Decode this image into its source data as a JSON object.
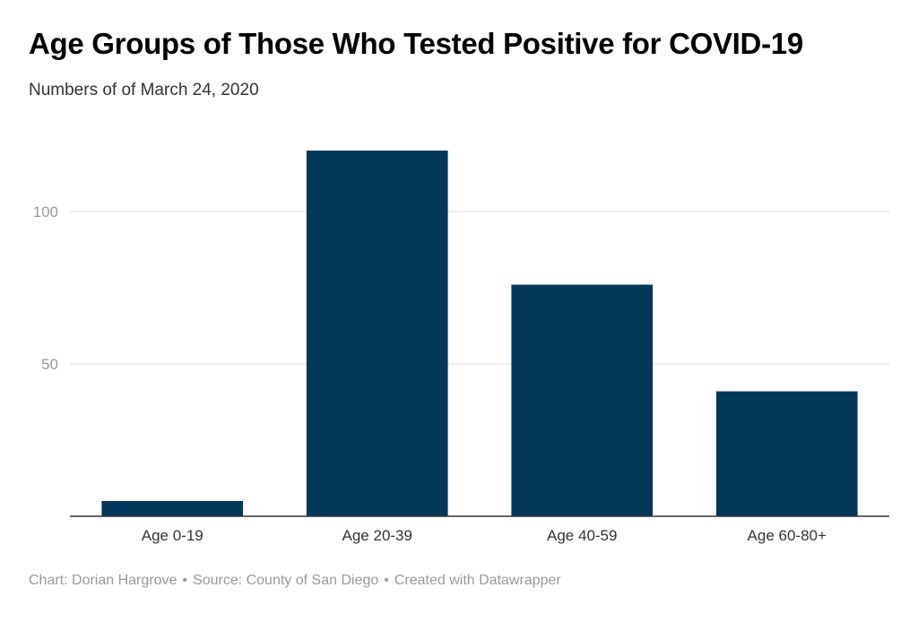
{
  "title": "Age Groups of Those Who Tested Positive for COVID-19",
  "subtitle": "Numbers of of March 24, 2020",
  "footer": {
    "chart_credit": "Chart: Dorian Hargrove",
    "source": "Source: County of San Diego",
    "created_with": "Created with Datawrapper",
    "separator": "•"
  },
  "colors": {
    "bar": "#00375a",
    "grid": "#dddddd",
    "axis": "#333333",
    "tick_label": "#999999",
    "category_label": "#333333"
  },
  "chart_data": {
    "type": "bar",
    "title": "Age Groups of Those Who Tested Positive for COVID-19",
    "subtitle": "Numbers of of March 24, 2020",
    "categories": [
      "Age 0-19",
      "Age 20-39",
      "Age 40-59",
      "Age 60-80+"
    ],
    "values": [
      5,
      120,
      76,
      41
    ],
    "ylim": [
      0,
      130
    ],
    "yticks": [
      50,
      100
    ],
    "grid": true,
    "legend": "none"
  }
}
